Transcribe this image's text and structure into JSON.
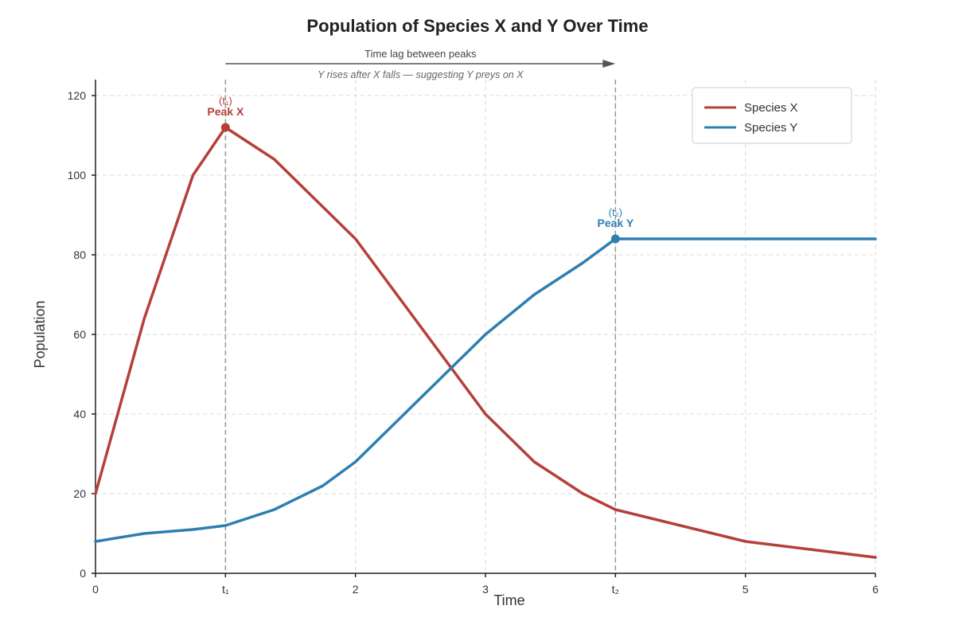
{
  "chart_data": {
    "type": "line",
    "title": "Population of Species X and Y Over Time",
    "xlabel": "Time",
    "ylabel": "Population",
    "xlim": [
      0,
      6
    ],
    "ylim": [
      0,
      120
    ],
    "x_ticks": [
      {
        "value": 0,
        "label": "0"
      },
      {
        "value": 1,
        "label": "t₁"
      },
      {
        "value": 2,
        "label": "2"
      },
      {
        "value": 3,
        "label": "3"
      },
      {
        "value": 4,
        "label": "t₂"
      },
      {
        "value": 5,
        "label": "5"
      },
      {
        "value": 6,
        "label": "6"
      }
    ],
    "y_ticks": [
      0,
      20,
      40,
      60,
      80,
      100,
      120
    ],
    "grid": true,
    "legend_position": "top-right",
    "colors": {
      "species_x": "#b5403a",
      "species_y": "#2e7fb0"
    },
    "series": [
      {
        "name": "Species X",
        "color": "#b5403a",
        "points": [
          [
            0,
            20
          ],
          [
            0.375,
            64
          ],
          [
            0.75,
            100
          ],
          [
            1,
            112
          ],
          [
            1.375,
            104
          ],
          [
            2,
            84
          ],
          [
            3,
            40
          ],
          [
            3.375,
            28
          ],
          [
            3.75,
            20
          ],
          [
            4,
            16
          ],
          [
            5,
            8
          ],
          [
            5.5,
            6
          ],
          [
            6,
            4
          ]
        ]
      },
      {
        "name": "Species Y",
        "color": "#2e7fb0",
        "points": [
          [
            0,
            8
          ],
          [
            0.375,
            10
          ],
          [
            0.75,
            11
          ],
          [
            1,
            12
          ],
          [
            1.375,
            16
          ],
          [
            1.75,
            22
          ],
          [
            2,
            28
          ],
          [
            2.5,
            44
          ],
          [
            3,
            60
          ],
          [
            3.375,
            70
          ],
          [
            3.75,
            78
          ],
          [
            4,
            84
          ],
          [
            6,
            84
          ]
        ]
      }
    ],
    "peaks": [
      {
        "name": "Peak X",
        "tag": "(t₁)",
        "x": 1,
        "y": 112,
        "color": "#b5403a"
      },
      {
        "name": "Peak Y",
        "tag": "(t₂)",
        "x": 4,
        "y": 84,
        "color": "#2e7fb0"
      }
    ],
    "reference_lines_x": [
      1,
      4
    ],
    "lag_annotation": {
      "from_x": 1,
      "to_x": 4,
      "text": "Time lag between peaks",
      "subtext": "Y rises after X falls — suggesting Y preys on X"
    }
  }
}
